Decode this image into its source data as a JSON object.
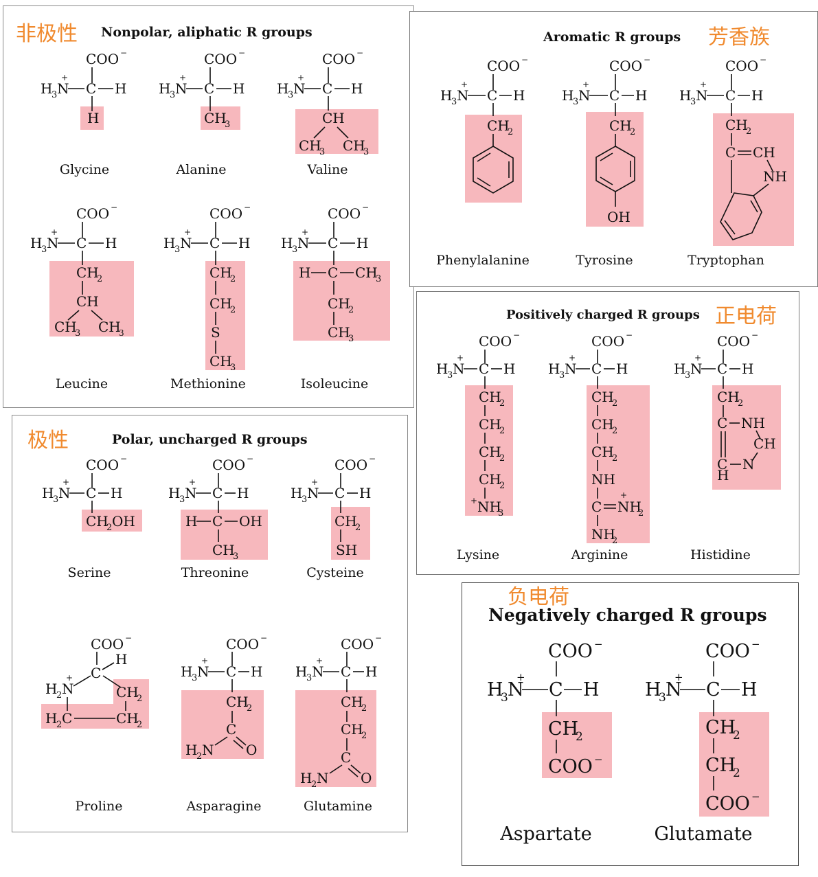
{
  "groups": {
    "nonpolar": {
      "title": "Nonpolar, aliphatic R groups",
      "label_cn": "非极性",
      "amino_acids": [
        "Glycine",
        "Alanine",
        "Valine",
        "Leucine",
        "Methionine",
        "Isoleucine"
      ]
    },
    "aromatic": {
      "title": "Aromatic R groups",
      "label_cn": "芳香族",
      "amino_acids": [
        "Phenylalanine",
        "Tyrosine",
        "Tryptophan"
      ]
    },
    "positive": {
      "title": "Positively charged R groups",
      "label_cn": "正电荷",
      "amino_acids": [
        "Lysine",
        "Arginine",
        "Histidine"
      ]
    },
    "polar": {
      "title": "Polar, uncharged R groups",
      "label_cn": "极性",
      "amino_acids": [
        "Serine",
        "Threonine",
        "Cysteine",
        "Proline",
        "Asparagine",
        "Glutamine"
      ]
    },
    "negative": {
      "title": "Negatively charged R groups",
      "label_cn": "负电荷",
      "amino_acids": [
        "Aspartate",
        "Glutamate"
      ]
    }
  },
  "colors": {
    "highlight": "#f7b8bd",
    "cn_label": "#f08a2e",
    "border": "#777777"
  }
}
